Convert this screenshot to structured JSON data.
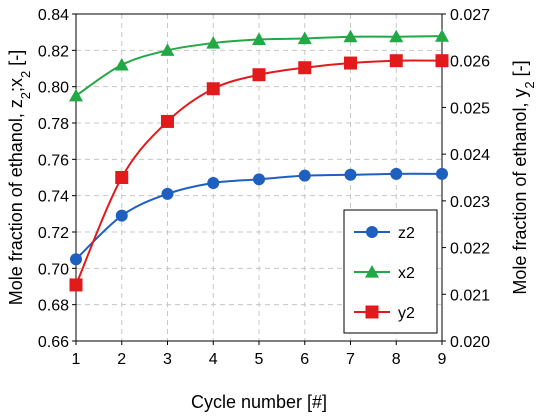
{
  "chart_data": {
    "type": "line",
    "x": [
      1,
      2,
      3,
      4,
      5,
      6,
      7,
      8,
      9
    ],
    "x_ticks": [
      "1",
      "2",
      "3",
      "4",
      "5",
      "6",
      "7",
      "8",
      "9"
    ],
    "xlabel": "Cycle number [#]",
    "xlim": [
      1,
      9
    ],
    "ylabel_left": {
      "pre": "Mole fraction of ethanol, z",
      "sub1": "2",
      "mid": ";x",
      "sub2": "2",
      "post": " [-]"
    },
    "ylim_left": [
      0.66,
      0.84
    ],
    "yticks_left": [
      "0.66",
      "0.68",
      "0.70",
      "0.72",
      "0.74",
      "0.76",
      "0.78",
      "0.80",
      "0.82",
      "0.84"
    ],
    "ylabel_right": {
      "pre": "Mole fraction of ethanol, y",
      "sub": "2",
      "post": " [-]"
    },
    "ylim_right": [
      0.02,
      0.027
    ],
    "yticks_right": [
      "0.020",
      "0.021",
      "0.022",
      "0.023",
      "0.024",
      "0.025",
      "0.026",
      "0.027"
    ],
    "grid": true,
    "legend_position": "bottom-right",
    "series": [
      {
        "name": "z2",
        "axis": "left",
        "color": "#1f5fbf",
        "marker": "circle",
        "values": [
          0.705,
          0.729,
          0.741,
          0.747,
          0.749,
          0.751,
          0.7515,
          0.752,
          0.752
        ]
      },
      {
        "name": "x2",
        "axis": "left",
        "color": "#22a845",
        "marker": "triangle",
        "values": [
          0.795,
          0.812,
          0.82,
          0.824,
          0.826,
          0.8265,
          0.8275,
          0.8275,
          0.8278
        ]
      },
      {
        "name": "y2",
        "axis": "right",
        "color": "#e31a1c",
        "marker": "square",
        "values": [
          0.0212,
          0.0235,
          0.0247,
          0.0254,
          0.0257,
          0.02585,
          0.02595,
          0.026,
          0.026
        ]
      }
    ]
  }
}
